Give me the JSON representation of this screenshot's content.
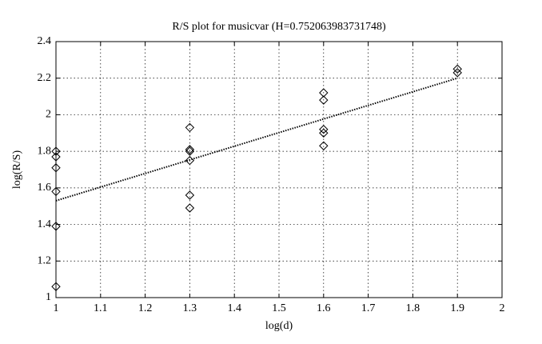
{
  "chart_data": {
    "type": "scatter",
    "title": "R/S plot for musicvar (H=0.752063983731748)",
    "xlabel": "log(d)",
    "ylabel": "log(R/S)",
    "xlim": [
      1,
      2
    ],
    "ylim": [
      1,
      2.4
    ],
    "xticks": [
      1,
      1.1,
      1.2,
      1.3,
      1.4,
      1.5,
      1.6,
      1.7,
      1.8,
      1.9,
      2
    ],
    "yticks": [
      1,
      1.2,
      1.4,
      1.6,
      1.8,
      2,
      2.2,
      2.4
    ],
    "grid": true,
    "series": [
      {
        "marker": "diamond",
        "color": "#000000",
        "x": [
          1,
          1,
          1,
          1,
          1,
          1,
          1.3,
          1.3,
          1.3,
          1.3,
          1.3,
          1.3,
          1.6,
          1.6,
          1.6,
          1.6,
          1.6,
          1.9,
          1.9
        ],
        "values": [
          1.8,
          1.77,
          1.71,
          1.58,
          1.39,
          1.06,
          1.93,
          1.81,
          1.8,
          1.75,
          1.56,
          1.49,
          2.12,
          2.08,
          1.92,
          1.9,
          1.83,
          2.25,
          2.23
        ]
      },
      {
        "marker": "dotted-line",
        "color": "#000000",
        "x": [
          1,
          1.9
        ],
        "values": [
          1.53,
          2.2
        ]
      }
    ]
  }
}
